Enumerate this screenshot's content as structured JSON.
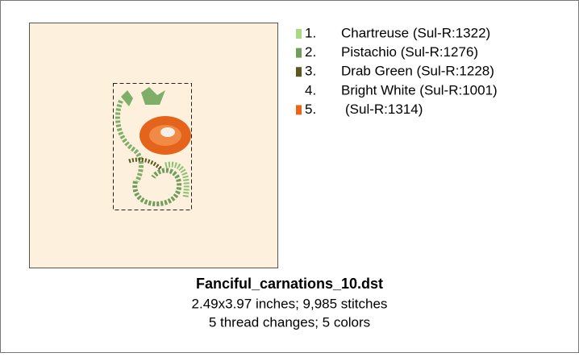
{
  "threads": [
    {
      "number": "1.",
      "name": "Chartreuse (Sul-R:1322)",
      "color": "#a8d880"
    },
    {
      "number": "2.",
      "name": "Pistachio (Sul-R:1276)",
      "color": "#6f9e5c"
    },
    {
      "number": "3.",
      "name": "Drab Green (Sul-R:1228)",
      "color": "#5a5820"
    },
    {
      "number": "4.",
      "name": "Bright White (Sul-R:1001)"
    },
    {
      "number": "5.",
      "name": "(Sul-R:1314)",
      "color": "#ec6418"
    }
  ],
  "footer": {
    "title": "Fanciful_carnations_10.dst",
    "size": "2.49x3.97 inches; 9,985 stitches",
    "info": "5 thread changes; 5 colors"
  }
}
